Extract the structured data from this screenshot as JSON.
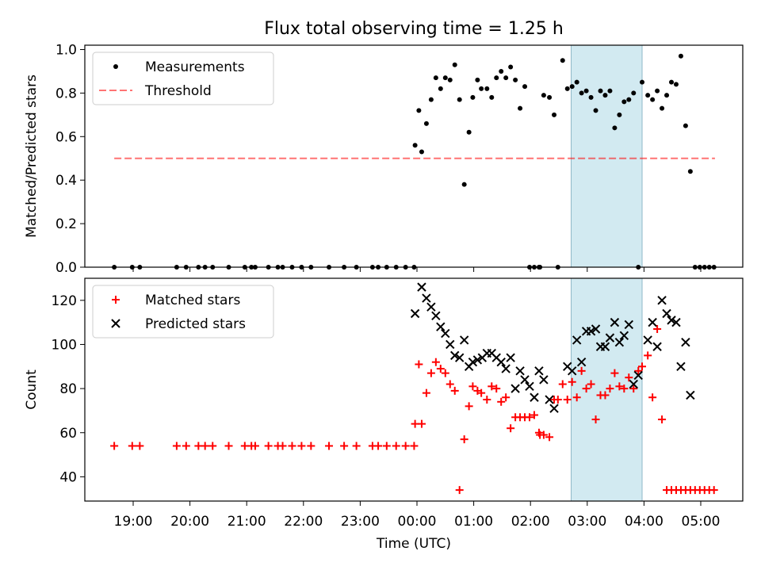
{
  "title": "Flux total observing time = 1.25 h",
  "colors": {
    "highlight": "#add8e6",
    "threshold": "#ff0000",
    "measurement": "#000000",
    "matched": "#ff0000",
    "predicted": "#000000"
  },
  "chart_data": [
    {
      "type": "scatter",
      "ylabel": "Matched/Predicted stars",
      "xlabel": "",
      "ylim": [
        0,
        1.02
      ],
      "y_ticks": [
        "0.0",
        "0.2",
        "0.4",
        "0.6",
        "0.8",
        "1.0"
      ],
      "y_tick_values": [
        0,
        0.2,
        0.4,
        0.6,
        0.8,
        1.0
      ],
      "legend": {
        "position": "top-left",
        "entries": [
          "Measurements",
          "Threshold"
        ]
      },
      "highlight_span": {
        "from": "02:43",
        "to": "03:58"
      },
      "threshold": {
        "name": "Threshold",
        "value": 0.5,
        "from": "18:40",
        "to": "05:15"
      },
      "series": [
        {
          "name": "Measurements",
          "marker": "dot",
          "x": [
            "18:40",
            "18:59",
            "19:07",
            "19:46",
            "19:56",
            "20:09",
            "20:16",
            "20:24",
            "20:41",
            "20:58",
            "21:05",
            "21:09",
            "21:23",
            "21:33",
            "21:38",
            "21:48",
            "21:58",
            "22:08",
            "22:27",
            "22:43",
            "22:56",
            "23:13",
            "23:19",
            "23:28",
            "23:38",
            "23:48",
            "23:57",
            "23:58",
            "00:02",
            "00:05",
            "00:10",
            "00:15",
            "00:20",
            "00:25",
            "00:30",
            "00:35",
            "00:40",
            "00:45",
            "00:50",
            "00:55",
            "00:59",
            "01:04",
            "01:08",
            "01:14",
            "01:19",
            "01:24",
            "01:29",
            "01:34",
            "01:39",
            "01:44",
            "01:49",
            "01:54",
            "01:59",
            "02:04",
            "02:09",
            "02:10",
            "02:14",
            "02:20",
            "02:25",
            "02:29",
            "02:34",
            "02:39",
            "02:44",
            "02:49",
            "02:54",
            "02:59",
            "03:04",
            "03:09",
            "03:14",
            "03:19",
            "03:24",
            "03:29",
            "03:34",
            "03:39",
            "03:44",
            "03:49",
            "03:54",
            "03:58",
            "04:04",
            "04:09",
            "04:14",
            "04:19",
            "04:24",
            "04:29",
            "04:34",
            "04:39",
            "04:44",
            "04:49",
            "04:54",
            "04:59",
            "05:04",
            "05:09",
            "05:14"
          ],
          "y": [
            0,
            0,
            0,
            0,
            0,
            0,
            0,
            0,
            0,
            0,
            0,
            0,
            0,
            0,
            0,
            0,
            0,
            0,
            0,
            0,
            0,
            0,
            0,
            0,
            0,
            0,
            0,
            0.56,
            0.72,
            0.53,
            0.66,
            0.77,
            0.87,
            0.82,
            0.87,
            0.86,
            0.93,
            0.77,
            0.38,
            0.62,
            0.78,
            0.86,
            0.82,
            0.82,
            0.78,
            0.87,
            0.9,
            0.87,
            0.92,
            0.86,
            0.73,
            0.83,
            0,
            0,
            0,
            0,
            0.79,
            0.78,
            0.7,
            0,
            0.95,
            0.82,
            0.83,
            0.85,
            0.8,
            0.81,
            0.78,
            0.72,
            0.81,
            0.79,
            0.81,
            0.64,
            0.7,
            0.76,
            0.77,
            0.8,
            0,
            0.85,
            0.79,
            0.77,
            0.81,
            0.73,
            0.79,
            0.85,
            0.84,
            0.97,
            0.65,
            0.44,
            0,
            0,
            0,
            0,
            0
          ]
        }
      ]
    },
    {
      "type": "scatter",
      "ylabel": "Count",
      "xlabel": "Time (UTC)",
      "ylim": [
        29,
        130
      ],
      "y_ticks": [
        "40",
        "60",
        "80",
        "100",
        "120"
      ],
      "y_tick_values": [
        40,
        60,
        80,
        100,
        120
      ],
      "x_ticks": [
        "19:00",
        "20:00",
        "21:00",
        "22:00",
        "23:00",
        "00:00",
        "01:00",
        "02:00",
        "03:00",
        "04:00",
        "05:00"
      ],
      "legend": {
        "position": "top-left",
        "entries": [
          "Matched stars",
          "Predicted stars"
        ]
      },
      "highlight_span": {
        "from": "02:43",
        "to": "03:58"
      },
      "series": [
        {
          "name": "Matched stars",
          "marker": "plus",
          "x": [
            "18:40",
            "18:59",
            "19:07",
            "19:46",
            "19:56",
            "20:09",
            "20:16",
            "20:24",
            "20:41",
            "20:58",
            "21:05",
            "21:09",
            "21:23",
            "21:33",
            "21:38",
            "21:48",
            "21:58",
            "22:08",
            "22:27",
            "22:43",
            "22:56",
            "23:13",
            "23:19",
            "23:28",
            "23:38",
            "23:48",
            "23:57",
            "23:58",
            "00:02",
            "00:05",
            "00:10",
            "00:15",
            "00:20",
            "00:25",
            "00:30",
            "00:35",
            "00:40",
            "00:45",
            "00:50",
            "00:55",
            "00:59",
            "01:04",
            "01:08",
            "01:14",
            "01:19",
            "01:24",
            "01:29",
            "01:34",
            "01:39",
            "01:44",
            "01:49",
            "01:54",
            "01:59",
            "02:04",
            "02:09",
            "02:10",
            "02:14",
            "02:20",
            "02:25",
            "02:29",
            "02:34",
            "02:39",
            "02:44",
            "02:49",
            "02:54",
            "02:59",
            "03:04",
            "03:09",
            "03:14",
            "03:19",
            "03:24",
            "03:29",
            "03:34",
            "03:39",
            "03:44",
            "03:49",
            "03:54",
            "03:58",
            "04:04",
            "04:09",
            "04:14",
            "04:19",
            "04:24",
            "04:29",
            "04:34",
            "04:39",
            "04:44",
            "04:49",
            "04:54",
            "04:59",
            "05:04",
            "05:09",
            "05:14"
          ],
          "y": [
            54,
            54,
            54,
            54,
            54,
            54,
            54,
            54,
            54,
            54,
            54,
            54,
            54,
            54,
            54,
            54,
            54,
            54,
            54,
            54,
            54,
            54,
            54,
            54,
            54,
            54,
            54,
            64,
            91,
            64,
            78,
            87,
            92,
            89,
            87,
            82,
            79,
            34,
            57,
            72,
            81,
            79,
            78,
            75,
            81,
            80,
            74,
            76,
            62,
            67,
            67,
            67,
            67,
            68,
            60,
            59,
            59,
            58,
            75,
            75,
            82,
            75,
            83,
            76,
            88,
            80,
            82,
            66,
            77,
            77,
            80,
            87,
            81,
            80,
            85,
            80,
            88,
            90,
            95,
            76,
            107,
            66,
            34,
            34,
            34,
            34,
            34,
            34,
            34,
            34,
            34,
            34,
            34
          ]
        },
        {
          "name": "Predicted stars",
          "marker": "x",
          "x": [
            "23:58",
            "00:05",
            "00:10",
            "00:15",
            "00:20",
            "00:25",
            "00:30",
            "00:35",
            "00:40",
            "00:45",
            "00:50",
            "00:55",
            "00:59",
            "01:04",
            "01:09",
            "01:14",
            "01:19",
            "01:24",
            "01:29",
            "01:34",
            "01:39",
            "01:44",
            "01:49",
            "01:54",
            "01:59",
            "02:04",
            "02:09",
            "02:14",
            "02:20",
            "02:25",
            "02:39",
            "02:44",
            "02:49",
            "02:54",
            "02:59",
            "03:04",
            "03:09",
            "03:14",
            "03:19",
            "03:24",
            "03:29",
            "03:34",
            "03:39",
            "03:44",
            "03:49",
            "03:54",
            "04:04",
            "04:09",
            "04:14",
            "04:19",
            "04:24",
            "04:29",
            "04:34",
            "04:39",
            "04:44",
            "04:49",
            "04:54",
            "04:59"
          ],
          "y": [
            114,
            126,
            121,
            117,
            113,
            108,
            105,
            100,
            95,
            94,
            102,
            90,
            92,
            93,
            94,
            96,
            96,
            94,
            92,
            89,
            94,
            80,
            88,
            84,
            81,
            76,
            88,
            84,
            75,
            71,
            90,
            88,
            102,
            92,
            106,
            106,
            107,
            99,
            99,
            103,
            110,
            101,
            104,
            109,
            82,
            86,
            102,
            110,
            99,
            120,
            114,
            111,
            110,
            90,
            101,
            77,
            null,
            null
          ]
        }
      ]
    }
  ]
}
